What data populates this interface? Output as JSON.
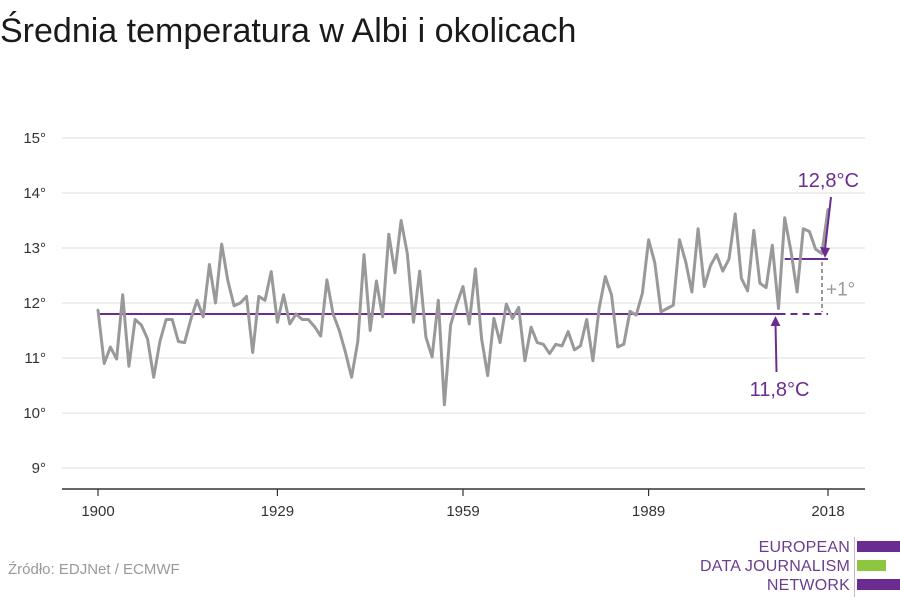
{
  "title": "Średnia temperatura w Albi i okolicach",
  "source": "Źródło: EDJNet / ECMWF",
  "logo": {
    "lines": [
      "EUROPEAN",
      "DATA JOURNALISM",
      "NETWORK"
    ],
    "colors": {
      "purple": "#6b2c91",
      "green": "#8dc63f"
    }
  },
  "colors": {
    "series": "#999999",
    "reference": "#6b2c91",
    "grid": "#dddddd",
    "axis": "#333333",
    "delta": "#999999"
  },
  "chart_data": {
    "type": "line",
    "title": "Średnia temperatura w Albi i okolicach",
    "xlabel": "",
    "ylabel": "",
    "xlim": [
      1900,
      2018
    ],
    "ylim": [
      9,
      15
    ],
    "x_ticks": [
      1900,
      1929,
      1959,
      1989,
      2018
    ],
    "y_ticks": [
      9,
      10,
      11,
      12,
      13,
      14,
      15
    ],
    "y_tick_labels": [
      "9°",
      "10°",
      "11°",
      "12°",
      "13°",
      "14°",
      "15°"
    ],
    "grid": true,
    "series": [
      {
        "x": [
          1900,
          1901,
          1902,
          1903,
          1904,
          1905,
          1906,
          1907,
          1908,
          1909,
          1910,
          1911,
          1912,
          1913,
          1914,
          1915,
          1916,
          1917,
          1918,
          1919,
          1920,
          1921,
          1922,
          1923,
          1924,
          1925,
          1926,
          1927,
          1928,
          1929,
          1930,
          1931,
          1932,
          1933,
          1934,
          1935,
          1936,
          1937,
          1938,
          1939,
          1940,
          1941,
          1942,
          1943,
          1944,
          1945,
          1946,
          1947,
          1948,
          1949,
          1950,
          1951,
          1952,
          1953,
          1954,
          1955,
          1956,
          1957,
          1958,
          1959,
          1960,
          1961,
          1962,
          1963,
          1964,
          1965,
          1966,
          1967,
          1968,
          1969,
          1970,
          1971,
          1972,
          1973,
          1974,
          1975,
          1976,
          1977,
          1978,
          1979,
          1980,
          1981,
          1982,
          1983,
          1984,
          1985,
          1986,
          1987,
          1988,
          1989,
          1990,
          1991,
          1992,
          1993,
          1994,
          1995,
          1996,
          1997,
          1998,
          1999,
          2000,
          2001,
          2002,
          2003,
          2004,
          2005,
          2006,
          2007,
          2008,
          2009,
          2010,
          2011,
          2012,
          2013,
          2014,
          2015,
          2016,
          2017,
          2018
        ],
        "y": [
          11.87,
          10.9,
          11.2,
          10.98,
          12.15,
          10.85,
          11.7,
          11.6,
          11.35,
          10.65,
          11.3,
          11.7,
          11.7,
          11.3,
          11.28,
          11.7,
          12.05,
          11.75,
          12.7,
          12.0,
          13.07,
          12.4,
          11.95,
          12.0,
          12.12,
          11.1,
          12.12,
          12.05,
          12.57,
          11.65,
          12.15,
          11.62,
          11.8,
          11.7,
          11.7,
          11.57,
          11.4,
          12.42,
          11.8,
          11.5,
          11.1,
          10.65,
          11.3,
          12.88,
          11.5,
          12.4,
          11.75,
          13.25,
          12.55,
          13.5,
          12.9,
          11.65,
          12.58,
          11.38,
          11.02,
          12.05,
          10.15,
          11.6,
          11.98,
          12.3,
          11.62,
          12.62,
          11.35,
          10.68,
          11.72,
          11.28,
          11.98,
          11.72,
          11.92,
          10.95,
          11.56,
          11.28,
          11.25,
          11.08,
          11.25,
          11.22,
          11.48,
          11.15,
          11.22,
          11.7,
          10.95,
          11.9,
          12.48,
          12.15,
          11.2,
          11.25,
          11.85,
          11.78,
          12.18,
          13.15,
          12.73,
          11.84,
          11.9,
          11.96,
          13.15,
          12.75,
          12.2,
          13.35,
          12.3,
          12.68,
          12.88,
          12.58,
          12.8,
          13.62,
          12.45,
          12.22,
          13.32,
          12.36,
          12.28,
          13.05,
          11.9,
          13.55,
          12.95,
          12.2,
          13.35,
          13.3,
          12.98,
          12.9,
          13.7
        ]
      }
    ],
    "reference_lines": [
      {
        "label": "11,8°C",
        "value": 11.8,
        "x_start": 1900,
        "x_end": 2010,
        "dashed_to": 2018
      },
      {
        "label": "12,8°C",
        "value": 12.8,
        "x_start": 2011,
        "x_end": 2018
      }
    ],
    "delta_label": "+1°"
  }
}
